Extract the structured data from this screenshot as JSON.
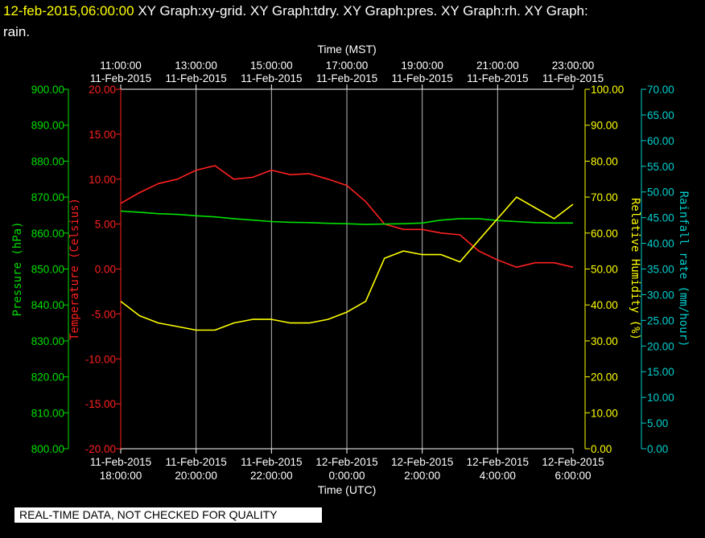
{
  "header": {
    "timestamp": "12-feb-2015,06:00:00",
    "line1_rest": " XY Graph:xy-grid.  XY Graph:tdry.  XY Graph:pres.  XY Graph:rh.  XY Graph:",
    "line2": "rain."
  },
  "footer": {
    "quality_notice": "REAL-TIME DATA, NOT CHECKED FOR QUALITY"
  },
  "colors": {
    "temperature": "#ff2020",
    "pressure": "#00e000",
    "humidity": "#ffff00",
    "rain": "#00d0d0",
    "grid": "#ffffff"
  },
  "chart_data": {
    "type": "line",
    "top_axis": {
      "label": "Time (MST)",
      "ticks": [
        [
          "11:00:00",
          "11-Feb-2015"
        ],
        [
          "13:00:00",
          "11-Feb-2015"
        ],
        [
          "15:00:00",
          "11-Feb-2015"
        ],
        [
          "17:00:00",
          "11-Feb-2015"
        ],
        [
          "19:00:00",
          "11-Feb-2015"
        ],
        [
          "21:00:00",
          "11-Feb-2015"
        ],
        [
          "23:00:00",
          "11-Feb-2015"
        ]
      ]
    },
    "bottom_axis": {
      "label": "Time (UTC)",
      "ticks": [
        [
          "11-Feb-2015",
          "18:00:00"
        ],
        [
          "11-Feb-2015",
          "20:00:00"
        ],
        [
          "11-Feb-2015",
          "22:00:00"
        ],
        [
          "12-Feb-2015",
          "0:00:00"
        ],
        [
          "12-Feb-2015",
          "2:00:00"
        ],
        [
          "12-Feb-2015",
          "4:00:00"
        ],
        [
          "12-Feb-2015",
          "6:00:00"
        ]
      ]
    },
    "x_hours_utc": [
      18,
      18.5,
      19,
      19.5,
      20,
      20.5,
      21,
      21.5,
      22,
      22.5,
      23,
      23.5,
      24,
      24.5,
      25,
      25.5,
      26,
      26.5,
      27,
      27.5,
      28,
      28.5,
      29,
      29.5,
      30
    ],
    "axes": {
      "pressure": {
        "label": "Pressure (hPa)",
        "range": [
          800,
          900
        ],
        "ticks": [
          "800.00",
          "810.00",
          "820.00",
          "830.00",
          "840.00",
          "850.00",
          "860.00",
          "870.00",
          "880.00",
          "890.00",
          "900.00"
        ]
      },
      "temperature": {
        "label": "Temperature (Celsius)",
        "range": [
          -20,
          20
        ],
        "ticks": [
          "-20.00",
          "-15.00",
          "-10.00",
          "-5.00",
          "0.00",
          "5.00",
          "10.00",
          "15.00",
          "20.00"
        ]
      },
      "humidity": {
        "label": "Relative Humidity (%)",
        "range": [
          0,
          100
        ],
        "ticks": [
          "0.00",
          "10.00",
          "20.00",
          "30.00",
          "40.00",
          "50.00",
          "60.00",
          "70.00",
          "80.00",
          "90.00",
          "100.00"
        ]
      },
      "rain": {
        "label": "Rainfall rate (mm/hour)",
        "range": [
          0,
          70
        ],
        "ticks": [
          "0.00",
          "5.00",
          "10.00",
          "15.00",
          "20.00",
          "25.00",
          "30.00",
          "35.00",
          "40.00",
          "45.00",
          "50.00",
          "55.00",
          "60.00",
          "65.00",
          "70.00"
        ]
      }
    },
    "series": [
      {
        "axis": "temperature",
        "values": [
          7.3,
          8.5,
          9.5,
          10.0,
          11.0,
          11.5,
          10.0,
          10.2,
          11.0,
          10.5,
          10.6,
          10.0,
          9.3,
          7.5,
          5.0,
          4.4,
          4.4,
          4.0,
          3.8,
          2.0,
          1.0,
          0.2,
          0.7,
          0.7,
          0.2
        ]
      },
      {
        "axis": "pressure",
        "values": [
          866.1,
          865.8,
          865.4,
          865.2,
          864.8,
          864.5,
          864.0,
          863.6,
          863.2,
          863.0,
          862.9,
          862.7,
          862.6,
          862.4,
          862.5,
          862.6,
          862.8,
          863.6,
          864.0,
          864.0,
          863.5,
          863.2,
          862.9,
          862.8,
          862.8
        ]
      },
      {
        "axis": "humidity",
        "values": [
          41,
          37,
          35,
          34,
          33,
          33,
          35,
          36,
          36,
          35,
          35,
          36,
          38,
          41,
          53,
          55,
          54,
          54,
          52,
          58,
          64,
          70,
          67,
          64,
          68
        ]
      },
      {
        "axis": "rain",
        "values": []
      }
    ],
    "grid": true
  }
}
